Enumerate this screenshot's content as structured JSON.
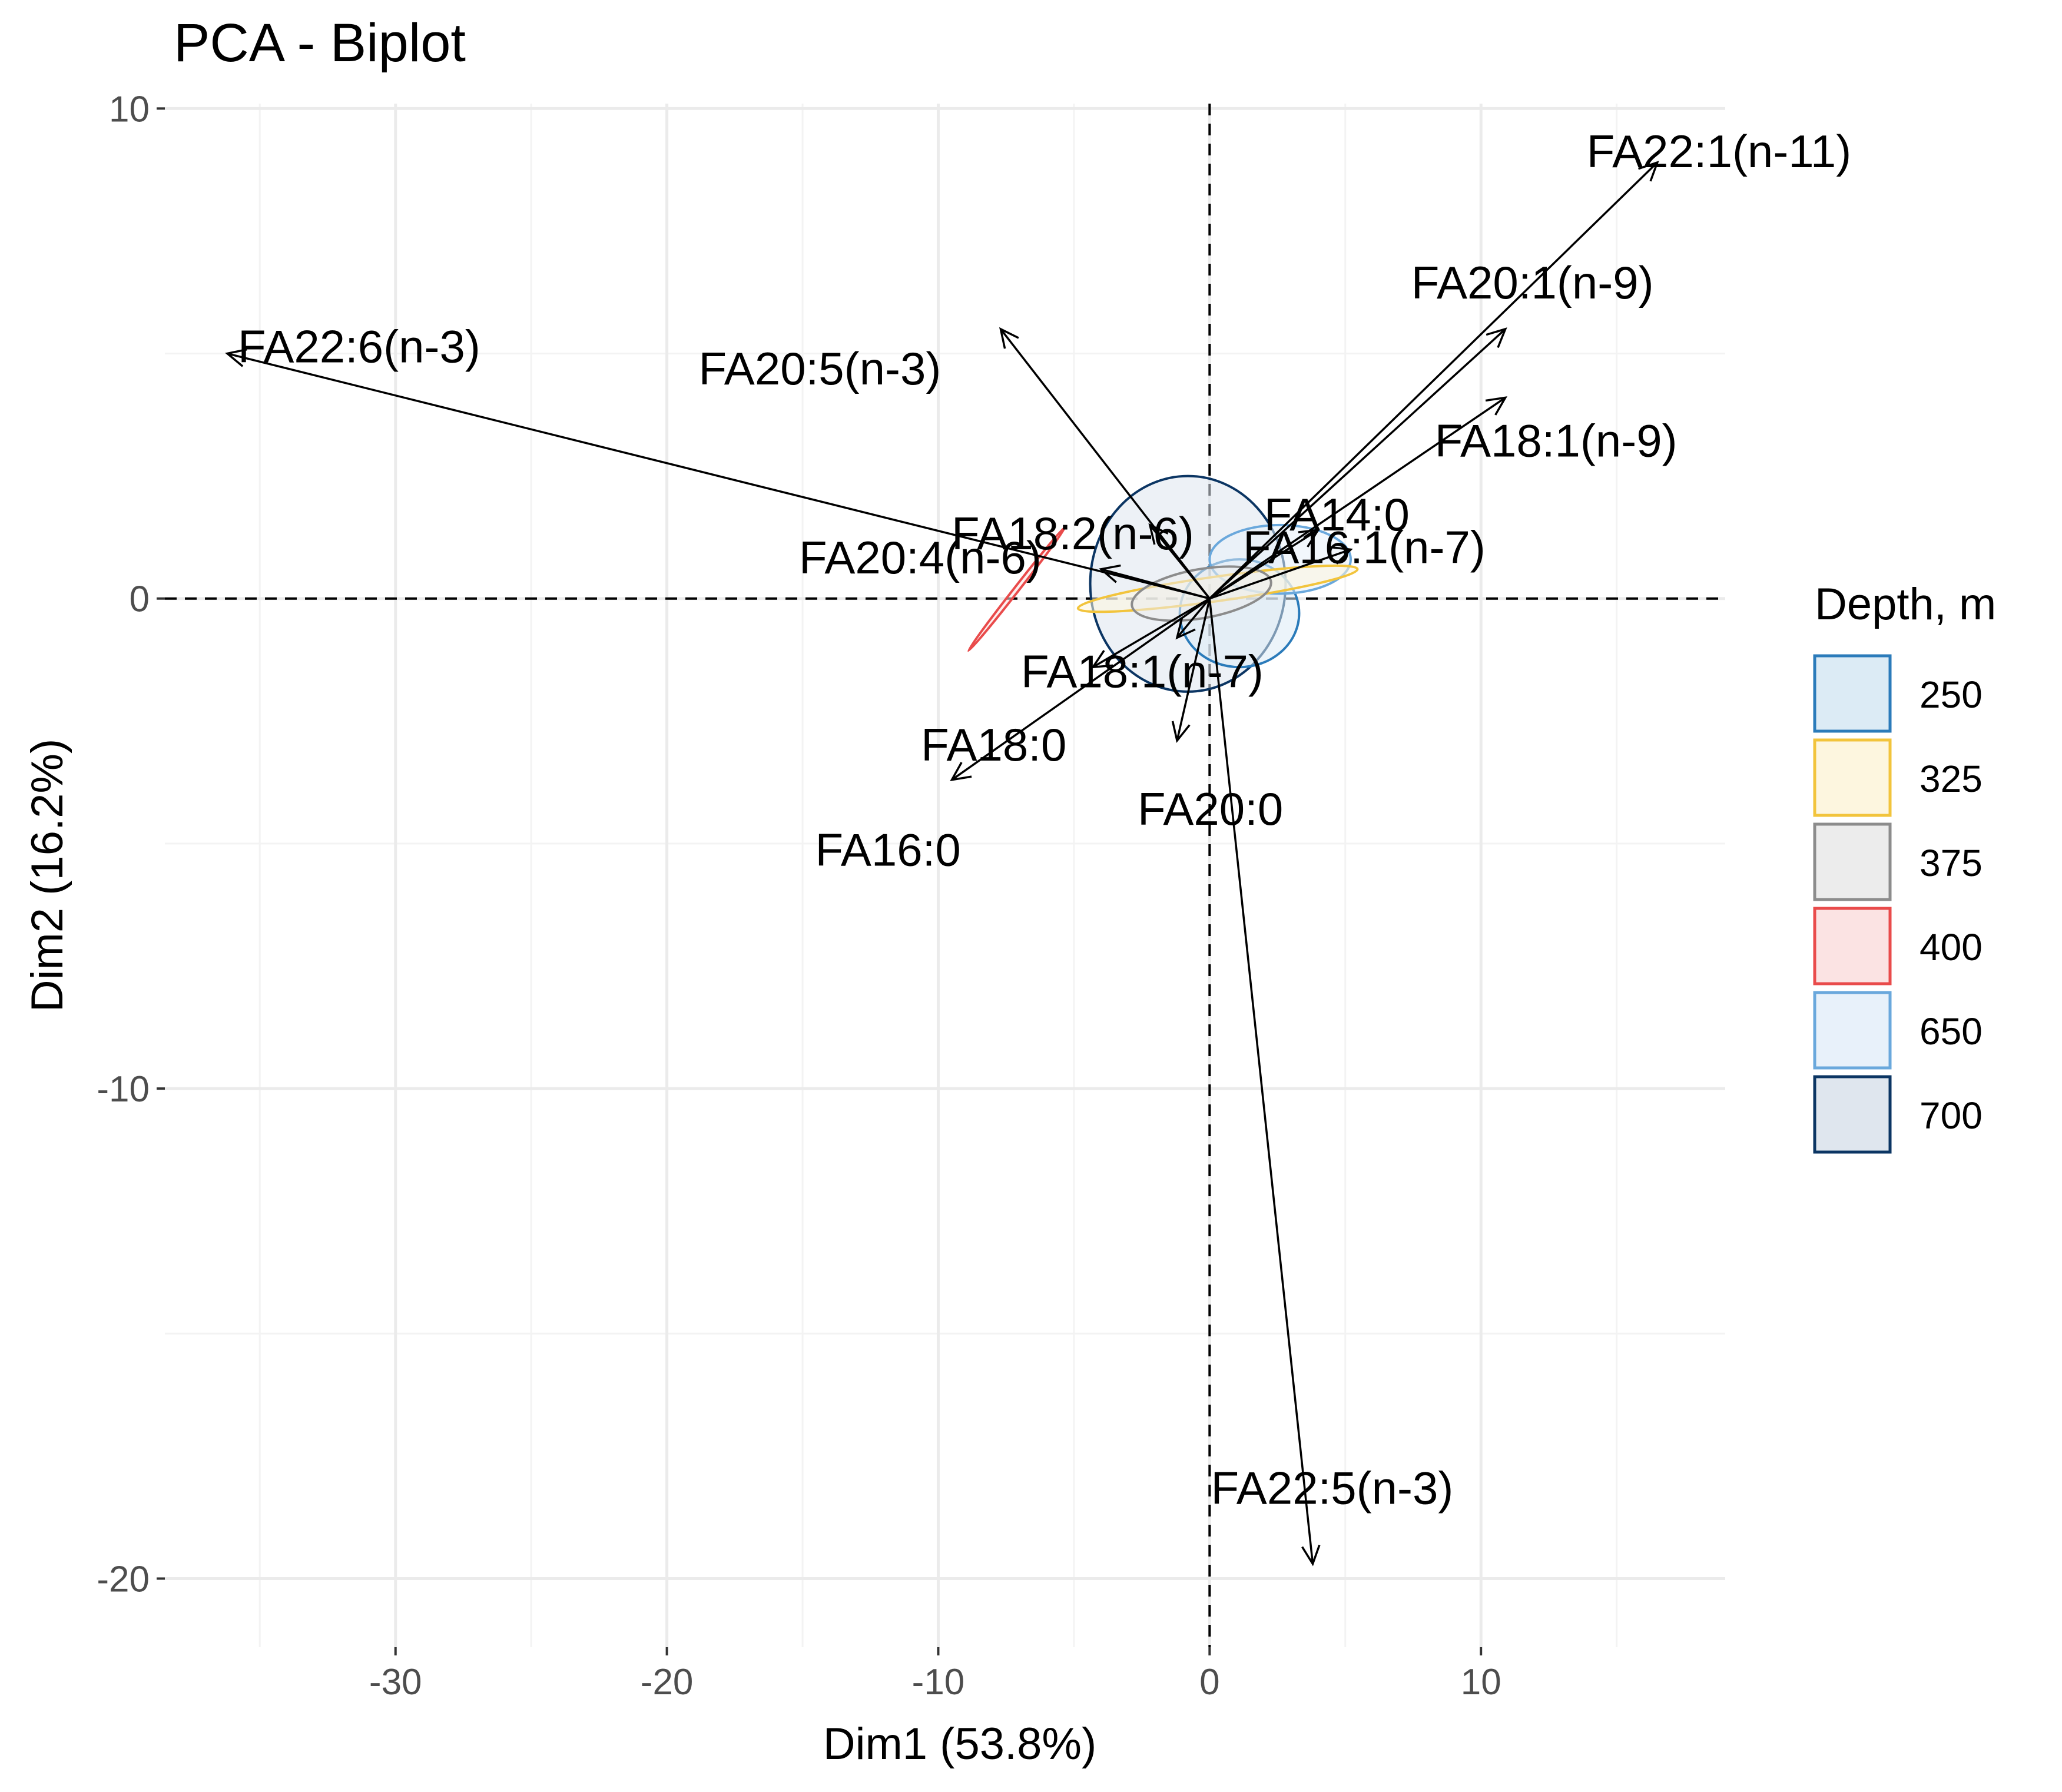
{
  "chart_data": {
    "type": "scatter",
    "subtype": "pca-biplot",
    "title": "PCA - Biplot",
    "xlabel": "Dim1 (53.8%)",
    "ylabel": "Dim2 (16.2%)",
    "xlim": [
      -38.5,
      19
    ],
    "ylim": [
      -21.4,
      10.1
    ],
    "xticks": [
      -30,
      -20,
      -10,
      0,
      10
    ],
    "yticks": [
      -20,
      -10,
      0,
      10
    ],
    "grid": true,
    "reference_lines": {
      "x": 0,
      "y": 0,
      "style": "dashed"
    },
    "variables": [
      {
        "name": "FA22:1(n-11)",
        "x": 16.5,
        "y": 8.9
      },
      {
        "name": "FA20:1(n-9)",
        "x": 10.9,
        "y": 5.5
      },
      {
        "name": "FA18:1(n-9)",
        "x": 10.9,
        "y": 4.1
      },
      {
        "name": "FA22:6(n-3)",
        "x": -36.2,
        "y": 5.0
      },
      {
        "name": "FA20:5(n-3)",
        "x": -7.7,
        "y": 5.5
      },
      {
        "name": "FA18:2(n-6)",
        "x": -2.2,
        "y": 1.5
      },
      {
        "name": "FA14:0",
        "x": 4.0,
        "y": 1.4
      },
      {
        "name": "FA20:4(n-6)",
        "x": -4.0,
        "y": 0.6
      },
      {
        "name": "FA16:1(n-7)",
        "x": 5.2,
        "y": 1.0
      },
      {
        "name": "FA18:1(n-7)",
        "x": -1.2,
        "y": -0.8
      },
      {
        "name": "FA18:0",
        "x": -4.3,
        "y": -1.4
      },
      {
        "name": "FA16:0",
        "x": -9.5,
        "y": -3.7
      },
      {
        "name": "FA20:0",
        "x": -1.2,
        "y": -2.9
      },
      {
        "name": "FA22:5(n-3)",
        "x": 3.8,
        "y": -19.7
      }
    ],
    "groups": [
      {
        "name": "250",
        "stroke": "#2b7bba",
        "fill": "#dcebf5",
        "ellipse": {
          "cx": 1.1,
          "cy": -0.3,
          "rx": 2.2,
          "ry": 1.1,
          "angle_deg": 0
        }
      },
      {
        "name": "325",
        "stroke": "#f2c43c",
        "fill": "#fdf6df",
        "ellipse": {
          "cx": 0.3,
          "cy": 0.2,
          "rx": 5.2,
          "ry": 0.25,
          "angle_deg": 8
        }
      },
      {
        "name": "375",
        "stroke": "#8c8c8c",
        "fill": "#ececec",
        "ellipse": {
          "cx": -0.3,
          "cy": 0.1,
          "rx": 2.6,
          "ry": 0.5,
          "angle_deg": 10
        }
      },
      {
        "name": "400",
        "stroke": "#e94b4b",
        "fill": "#fbe3e3",
        "ellipse": {
          "cx": -7.1,
          "cy": 0.2,
          "rx": 2.9,
          "ry": 0.05,
          "angle_deg": 52
        }
      },
      {
        "name": "650",
        "stroke": "#6aa8dc",
        "fill": "#e8f1fa",
        "ellipse": {
          "cx": 2.6,
          "cy": 0.8,
          "rx": 2.6,
          "ry": 0.7,
          "angle_deg": 0
        }
      },
      {
        "name": "700",
        "stroke": "#0b3563",
        "fill": "#dfe6ee",
        "ellipse": {
          "cx": -0.8,
          "cy": 0.3,
          "rx": 3.6,
          "ry": 2.2,
          "angle_deg": 0
        }
      }
    ],
    "legend": {
      "title": "Depth, m",
      "position": "right"
    }
  }
}
